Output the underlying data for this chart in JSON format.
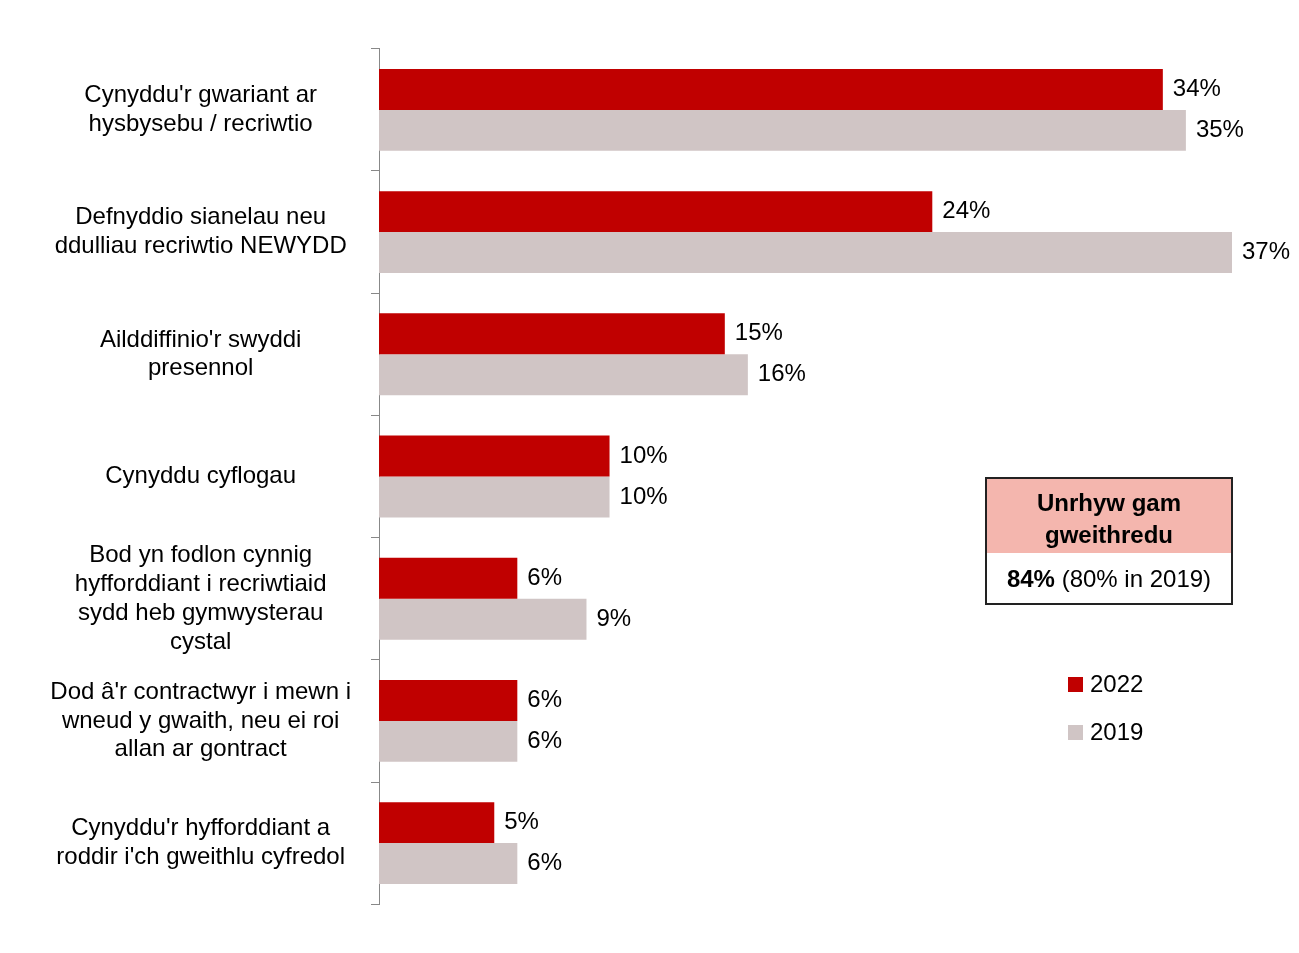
{
  "chart_data": {
    "type": "bar",
    "orientation": "horizontal",
    "categories": [
      "Cynyddu'r gwariant ar hysbysebu / recriwtio",
      "Defnyddio sianelau neu ddulliau recriwtio NEWYDD",
      "Ailddiffinio'r swyddi presennol",
      "Cynyddu cyflogau",
      "Bod yn fodlon cynnig hyfforddiant i recriwtiaid sydd heb gymwysterau cystal",
      "Dod â'r contractwyr i mewn i wneud y gwaith, neu ei roi allan ar gontract",
      "Cynyddu'r hyfforddiant a roddir i'ch gweithlu cyfredol"
    ],
    "series": [
      {
        "name": "2022",
        "color": "#c00000",
        "values": [
          34,
          24,
          15,
          10,
          6,
          6,
          5
        ],
        "value_labels": [
          "34%",
          "24%",
          "15%",
          "10%",
          "6%",
          "6%",
          "5%"
        ]
      },
      {
        "name": "2019",
        "color": "#d0c5c5",
        "values": [
          35,
          37,
          16,
          10,
          9,
          6,
          6
        ],
        "value_labels": [
          "35%",
          "37%",
          "16%",
          "10%",
          "9%",
          "6%",
          "6%"
        ]
      }
    ],
    "xlim": [
      0,
      37
    ],
    "legend": "right",
    "annotations": [
      "Unrhyw gam gweithredu",
      "84%",
      "(80% in 2019)"
    ]
  }
}
